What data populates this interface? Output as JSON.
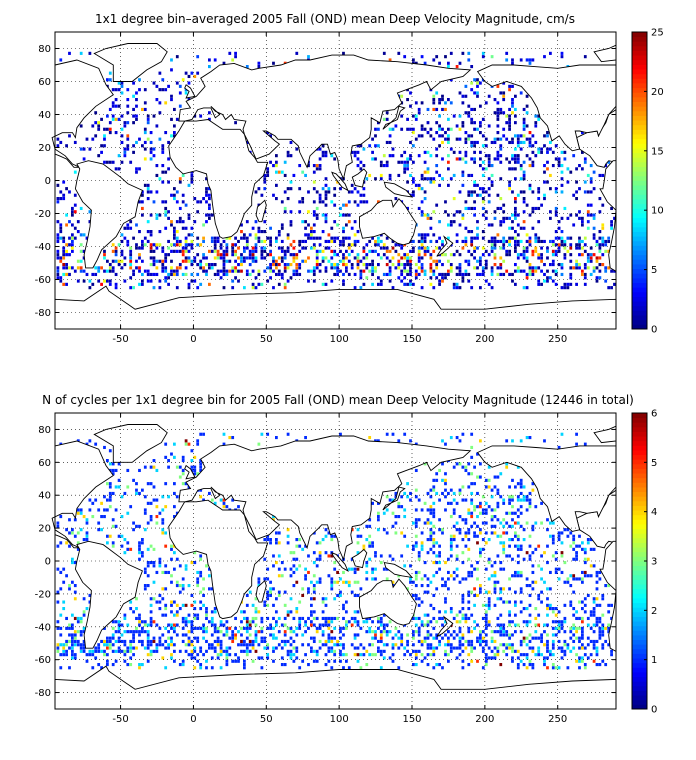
{
  "chart_data": [
    {
      "type": "heatmap",
      "title": "1x1 degree bin–averaged 2005 Fall (OND) mean Deep Velocity Magnitude, cm/s",
      "xlabel": "",
      "ylabel": "",
      "xlim": [
        -95,
        290
      ],
      "ylim": [
        -90,
        90
      ],
      "xticks": [
        -50,
        0,
        50,
        100,
        150,
        200,
        250
      ],
      "yticks": [
        80,
        60,
        40,
        20,
        0,
        -20,
        -40,
        -60,
        -80
      ],
      "grid": true,
      "colorbar": {
        "min": 0,
        "max": 25,
        "ticks": [
          0,
          5,
          10,
          15,
          20,
          25
        ],
        "colormap": "jet"
      },
      "seed": 11,
      "value_mode": "speed"
    },
    {
      "type": "heatmap",
      "title": "N of cycles per 1x1 degree bin for 2005 Fall (OND) mean Deep Velocity Magnitude (12446 in total)",
      "xlabel": "",
      "ylabel": "",
      "xlim": [
        -95,
        290
      ],
      "ylim": [
        -90,
        90
      ],
      "xticks": [
        -50,
        0,
        50,
        100,
        150,
        200,
        250
      ],
      "yticks": [
        80,
        60,
        40,
        20,
        0,
        -20,
        -40,
        -60,
        -80
      ],
      "grid": true,
      "colorbar": {
        "min": 0,
        "max": 6,
        "ticks": [
          0,
          1,
          2,
          3,
          4,
          5,
          6
        ],
        "colormap": "jet"
      },
      "seed": 29,
      "value_mode": "count"
    }
  ],
  "land_masses": [
    {
      "name": "north-america",
      "lonlat": [
        [
          -95,
          70
        ],
        [
          -80,
          73
        ],
        [
          -65,
          68
        ],
        [
          -60,
          58
        ],
        [
          -55,
          52
        ],
        [
          -67,
          45
        ],
        [
          -75,
          38
        ],
        [
          -80,
          32
        ],
        [
          -81,
          26
        ],
        [
          -83,
          29
        ],
        [
          -90,
          29
        ],
        [
          -97,
          26
        ],
        [
          -95,
          19
        ],
        [
          -88,
          15
        ],
        [
          -83,
          10
        ],
        [
          -78,
          8
        ],
        [
          -82,
          8
        ],
        [
          -87,
          13
        ],
        [
          -92,
          15
        ],
        [
          -95,
          16
        ],
        [
          -95,
          70
        ]
      ]
    },
    {
      "name": "south-america",
      "lonlat": [
        [
          -80,
          10
        ],
        [
          -72,
          12
        ],
        [
          -62,
          10
        ],
        [
          -50,
          2
        ],
        [
          -45,
          -2
        ],
        [
          -35,
          -6
        ],
        [
          -38,
          -13
        ],
        [
          -40,
          -22
        ],
        [
          -48,
          -26
        ],
        [
          -53,
          -34
        ],
        [
          -58,
          -38
        ],
        [
          -63,
          -42
        ],
        [
          -66,
          -48
        ],
        [
          -69,
          -53
        ],
        [
          -74,
          -53
        ],
        [
          -75,
          -45
        ],
        [
          -73,
          -37
        ],
        [
          -71,
          -28
        ],
        [
          -70,
          -18
        ],
        [
          -76,
          -13
        ],
        [
          -81,
          -5
        ],
        [
          -80,
          0
        ],
        [
          -78,
          7
        ],
        [
          -80,
          10
        ]
      ]
    },
    {
      "name": "greenland",
      "lonlat": [
        [
          -55,
          60
        ],
        [
          -42,
          60
        ],
        [
          -32,
          67
        ],
        [
          -22,
          72
        ],
        [
          -18,
          78
        ],
        [
          -25,
          83
        ],
        [
          -45,
          83
        ],
        [
          -60,
          80
        ],
        [
          -68,
          77
        ],
        [
          -55,
          70
        ],
        [
          -55,
          60
        ]
      ]
    },
    {
      "name": "africa",
      "lonlat": [
        [
          -17,
          21
        ],
        [
          -16,
          14
        ],
        [
          -12,
          8
        ],
        [
          -7,
          4
        ],
        [
          2,
          6
        ],
        [
          9,
          4
        ],
        [
          10,
          -2
        ],
        [
          12,
          -6
        ],
        [
          13,
          -14
        ],
        [
          15,
          -26
        ],
        [
          18,
          -34
        ],
        [
          20,
          -35
        ],
        [
          26,
          -34
        ],
        [
          30,
          -31
        ],
        [
          33,
          -25
        ],
        [
          35,
          -20
        ],
        [
          40,
          -15
        ],
        [
          40,
          -10
        ],
        [
          42,
          -2
        ],
        [
          48,
          3
        ],
        [
          51,
          11
        ],
        [
          44,
          11
        ],
        [
          42,
          14
        ],
        [
          38,
          18
        ],
        [
          35,
          28
        ],
        [
          32,
          31
        ],
        [
          20,
          31
        ],
        [
          10,
          37
        ],
        [
          2,
          36
        ],
        [
          -6,
          36
        ],
        [
          -10,
          30
        ],
        [
          -17,
          21
        ]
      ]
    },
    {
      "name": "madagascar",
      "lonlat": [
        [
          44,
          -16
        ],
        [
          49,
          -12
        ],
        [
          50,
          -15
        ],
        [
          47,
          -25
        ],
        [
          45,
          -25
        ],
        [
          43,
          -21
        ],
        [
          44,
          -16
        ]
      ]
    },
    {
      "name": "eurasia",
      "lonlat": [
        [
          -10,
          36
        ],
        [
          -9,
          43
        ],
        [
          -2,
          44
        ],
        [
          -5,
          48
        ],
        [
          2,
          51
        ],
        [
          5,
          54
        ],
        [
          8,
          57
        ],
        [
          5,
          62
        ],
        [
          12,
          66
        ],
        [
          18,
          70
        ],
        [
          28,
          71
        ],
        [
          40,
          67
        ],
        [
          45,
          68
        ],
        [
          60,
          70
        ],
        [
          70,
          73
        ],
        [
          80,
          73
        ],
        [
          95,
          76
        ],
        [
          110,
          76
        ],
        [
          120,
          73
        ],
        [
          140,
          72
        ],
        [
          160,
          70
        ],
        [
          175,
          68
        ],
        [
          190,
          67
        ],
        [
          185,
          63
        ],
        [
          170,
          60
        ],
        [
          163,
          55
        ],
        [
          160,
          60
        ],
        [
          155,
          58
        ],
        [
          140,
          53
        ],
        [
          143,
          47
        ],
        [
          138,
          43
        ],
        [
          130,
          42
        ],
        [
          128,
          35
        ],
        [
          122,
          38
        ],
        [
          122,
          31
        ],
        [
          121,
          26
        ],
        [
          115,
          22
        ],
        [
          109,
          21
        ],
        [
          108,
          16
        ],
        [
          109,
          11
        ],
        [
          105,
          9
        ],
        [
          103,
          1
        ],
        [
          100,
          7
        ],
        [
          99,
          13
        ],
        [
          97,
          17
        ],
        [
          94,
          16
        ],
        [
          92,
          22
        ],
        [
          88,
          22
        ],
        [
          86,
          20
        ],
        [
          80,
          15
        ],
        [
          78,
          8
        ],
        [
          73,
          17
        ],
        [
          72,
          21
        ],
        [
          67,
          25
        ],
        [
          58,
          25
        ],
        [
          56,
          27
        ],
        [
          50,
          30
        ],
        [
          48,
          30
        ],
        [
          56,
          24
        ],
        [
          59,
          22
        ],
        [
          52,
          16
        ],
        [
          43,
          13
        ],
        [
          39,
          21
        ],
        [
          35,
          28
        ],
        [
          34,
          31
        ],
        [
          36,
          36
        ],
        [
          28,
          37
        ],
        [
          26,
          40
        ],
        [
          22,
          37
        ],
        [
          20,
          40
        ],
        [
          15,
          42
        ],
        [
          12,
          45
        ],
        [
          18,
          40
        ],
        [
          15,
          38
        ],
        [
          12,
          44
        ],
        [
          7,
          44
        ],
        [
          3,
          43
        ],
        [
          -1,
          37
        ],
        [
          -6,
          36
        ],
        [
          -10,
          36
        ]
      ]
    },
    {
      "name": "australia",
      "lonlat": [
        [
          114,
          -22
        ],
        [
          122,
          -18
        ],
        [
          126,
          -14
        ],
        [
          130,
          -12
        ],
        [
          136,
          -12
        ],
        [
          137,
          -16
        ],
        [
          141,
          -11
        ],
        [
          145,
          -15
        ],
        [
          150,
          -22
        ],
        [
          153,
          -26
        ],
        [
          151,
          -33
        ],
        [
          148,
          -38
        ],
        [
          144,
          -39
        ],
        [
          140,
          -38
        ],
        [
          135,
          -35
        ],
        [
          131,
          -32
        ],
        [
          124,
          -34
        ],
        [
          116,
          -35
        ],
        [
          114,
          -28
        ],
        [
          114,
          -22
        ]
      ]
    },
    {
      "name": "antarctica",
      "lonlat": [
        [
          -95,
          -72
        ],
        [
          -75,
          -73
        ],
        [
          -60,
          -64
        ],
        [
          -58,
          -67
        ],
        [
          -40,
          -78
        ],
        [
          -10,
          -71
        ],
        [
          30,
          -69
        ],
        [
          70,
          -68
        ],
        [
          100,
          -66
        ],
        [
          140,
          -66
        ],
        [
          165,
          -72
        ],
        [
          170,
          -78
        ],
        [
          200,
          -78
        ],
        [
          230,
          -75
        ],
        [
          260,
          -73
        ],
        [
          290,
          -72
        ],
        [
          290,
          -90
        ],
        [
          -95,
          -90
        ],
        [
          -95,
          -72
        ]
      ]
    },
    {
      "name": "new-guinea",
      "lonlat": [
        [
          131,
          -1
        ],
        [
          138,
          -2
        ],
        [
          146,
          -6
        ],
        [
          150,
          -10
        ],
        [
          143,
          -9
        ],
        [
          138,
          -8
        ],
        [
          132,
          -4
        ],
        [
          131,
          -1
        ]
      ]
    },
    {
      "name": "borneo",
      "lonlat": [
        [
          109,
          2
        ],
        [
          113,
          4
        ],
        [
          117,
          7
        ],
        [
          119,
          5
        ],
        [
          117,
          0
        ],
        [
          116,
          -4
        ],
        [
          111,
          -3
        ],
        [
          109,
          2
        ]
      ]
    },
    {
      "name": "sumatra",
      "lonlat": [
        [
          95,
          5
        ],
        [
          98,
          4
        ],
        [
          104,
          -2
        ],
        [
          106,
          -6
        ],
        [
          102,
          -4
        ],
        [
          96,
          3
        ],
        [
          95,
          5
        ]
      ]
    },
    {
      "name": "japan",
      "lonlat": [
        [
          130,
          31
        ],
        [
          132,
          34
        ],
        [
          135,
          35
        ],
        [
          140,
          37
        ],
        [
          142,
          42
        ],
        [
          145,
          44
        ],
        [
          141,
          45
        ],
        [
          139,
          38
        ],
        [
          134,
          34
        ],
        [
          130,
          31
        ]
      ]
    },
    {
      "name": "british-isles",
      "lonlat": [
        [
          -5,
          50
        ],
        [
          1,
          51
        ],
        [
          -2,
          56
        ],
        [
          -5,
          58
        ],
        [
          -6,
          56
        ],
        [
          -3,
          54
        ],
        [
          -5,
          50
        ]
      ]
    },
    {
      "name": "new-zealand",
      "lonlat": [
        [
          172,
          -34
        ],
        [
          178,
          -38
        ],
        [
          175,
          -41
        ],
        [
          171,
          -44
        ],
        [
          167,
          -46
        ],
        [
          170,
          -42
        ],
        [
          174,
          -38
        ],
        [
          172,
          -34
        ]
      ]
    },
    {
      "name": "north-america-east",
      "lonlat": [
        [
          290,
          43
        ],
        [
          285,
          40
        ],
        [
          283,
          35
        ],
        [
          280,
          31
        ],
        [
          278,
          27
        ],
        [
          277,
          30
        ],
        [
          270,
          29
        ],
        [
          263,
          26
        ],
        [
          265,
          19
        ],
        [
          272,
          15
        ],
        [
          277,
          9
        ],
        [
          282,
          8
        ],
        [
          283,
          10
        ],
        [
          285,
          12
        ],
        [
          290,
          11
        ],
        [
          290,
          43
        ]
      ]
    },
    {
      "name": "north-america-west",
      "lonlat": [
        [
          265,
          70
        ],
        [
          250,
          68
        ],
        [
          235,
          69
        ],
        [
          220,
          70
        ],
        [
          205,
          70
        ],
        [
          195,
          66
        ],
        [
          200,
          60
        ],
        [
          205,
          57
        ],
        [
          215,
          60
        ],
        [
          225,
          57
        ],
        [
          232,
          50
        ],
        [
          236,
          44
        ],
        [
          238,
          38
        ],
        [
          243,
          33
        ],
        [
          246,
          24
        ],
        [
          251,
          27
        ],
        [
          255,
          22
        ],
        [
          260,
          18
        ],
        [
          265,
          19
        ],
        [
          263,
          26
        ],
        [
          262,
          30
        ],
        [
          265,
          30
        ],
        [
          270,
          29
        ],
        [
          277,
          30
        ],
        [
          278,
          27
        ],
        [
          282,
          34
        ],
        [
          285,
          40
        ],
        [
          290,
          45
        ],
        [
          290,
          70
        ],
        [
          265,
          70
        ]
      ]
    },
    {
      "name": "south-america-east",
      "lonlat": [
        [
          281,
          -5
        ],
        [
          282,
          0
        ],
        [
          283,
          7
        ],
        [
          288,
          12
        ],
        [
          290,
          12
        ],
        [
          290,
          -55
        ],
        [
          286,
          -53
        ],
        [
          285,
          -45
        ],
        [
          287,
          -37
        ],
        [
          289,
          -28
        ],
        [
          290,
          -18
        ],
        [
          284,
          -13
        ],
        [
          279,
          -5
        ],
        [
          281,
          -5
        ]
      ]
    },
    {
      "name": "greenland-east",
      "lonlat": [
        [
          275,
          78
        ],
        [
          285,
          80
        ],
        [
          290,
          82
        ],
        [
          290,
          73
        ],
        [
          280,
          72
        ],
        [
          275,
          78
        ]
      ]
    }
  ]
}
